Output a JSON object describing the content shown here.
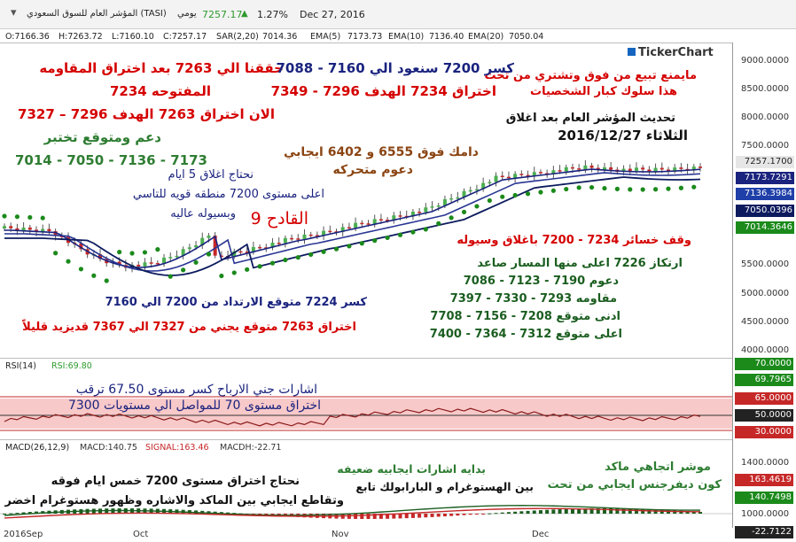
{
  "header": {
    "title": "المؤشر العام للسوق السعودي (TASI)",
    "period": "يومي",
    "last": "7257.17",
    "change_pct": "1.27%",
    "date": "Dec 27, 2016",
    "up_color": "#2e9a2e"
  },
  "ohlc": {
    "o": "O:7166.36",
    "h": "H:7263.72",
    "l": "L:7160.10",
    "c": "C:7257.17",
    "sar": "SAR(2,20)",
    "sar_v": "7014.36",
    "ema5": "EMA(5)",
    "ema5_v": "7173.73",
    "ema10": "EMA(10)",
    "ema10_v": "7136.40",
    "ema20": "EMA(20)",
    "ema20_v": "7050.04"
  },
  "brand": "TickerChart",
  "price_axis": {
    "ticks": [
      "9000.0000",
      "8500.0000",
      "8000.0000",
      "7500.0000",
      "5500.0000",
      "5000.0000",
      "4500.0000",
      "4000.0000"
    ],
    "tags": [
      {
        "v": "7257.1700",
        "bg": "#e6e6e6",
        "fg": "#222"
      },
      {
        "v": "7173.7291",
        "bg": "#1a237e",
        "fg": "#fff"
      },
      {
        "v": "7136.3984",
        "bg": "#1f3fa8",
        "fg": "#fff"
      },
      {
        "v": "7050.0396",
        "bg": "#0d1b5e",
        "fg": "#fff"
      },
      {
        "v": "7014.3646",
        "bg": "#1b8a1b",
        "fg": "#fff"
      }
    ]
  },
  "rsi": {
    "title": "RSI(14)",
    "value_label": "RSI:69.80",
    "ticks": [
      "70.0000",
      "69.7965",
      "65.0000",
      "50.0000",
      "30.0000"
    ]
  },
  "macd": {
    "title": "MACD(26,12,9)",
    "macd": "MACD:140.75",
    "signal": "SIGNAL:163.46",
    "hist": "MACDH:-22.71",
    "ticks": [
      "1400.0000",
      "1000.0000",
      "163.4619",
      "140.7498",
      "-22.7122"
    ]
  },
  "xaxis": [
    "2016Sep",
    "Oct",
    "Nov",
    "Dec"
  ],
  "annotations": {
    "a1": "حققنا الي 7263 بعد اختراق المقاومه",
    "a2": "المفتوحه 7234",
    "a3": "الان اختراق 7263 الهدف 7296 – 7327",
    "a4": "دعم ومتوقع تختبر",
    "a5": "7014 - 7050 - 7136 - 7173",
    "b1": "كسر 7200 سنعود الي 7160 - 7088",
    "b2": "اختراق 7234 الهدف 7296 - 7349",
    "c1": "مايمنع تبيع من فوق وتشتري من تحت",
    "c2": "هذا سلوك كبار الشخصيات",
    "d1": "تحديث المؤشر العام بعد اغلاق",
    "d2": "الثلاثاء 2016/12/27",
    "e1": "دامك فوق 6555 و 6402 ايجابي",
    "e2": "دعوم متحركه",
    "f1": "نحتاج اغلاق 5 ايام",
    "f2": "اعلى مستوى 7200 منطقه قويه للتاسي",
    "f3": "وبسيوله عاليه",
    "g1": "القادح 9",
    "h1": "وقف خسائر 7234 - 7200 باغلاق وسيوله",
    "h2": "ارتكاز 7226 اعلى منها المسار صاعد",
    "h3": "دعوم 7190 - 7123 - 7086",
    "h4": "مقاومه 7293 - 7330 - 7397",
    "h5": "ادنى متوقع 7208 - 7156 - 7708",
    "h6": "اعلى متوقع 7312 - 7364 - 7400",
    "i1": "كسر 7224 متوقع الارتداد من 7200 الي 7160",
    "i2": "اختراق 7263 متوقع يجني من 7327 الي 7367 قديزيد قليلاً",
    "j1": "اشارات جني الارباح كسر مستوى 67.50 ترقب",
    "j2": "اختراق مستوى 70 للمواصل الي مستويات 7300",
    "k1": "نحتاج اختراق مستوى 7200 خمس ايام فوقه",
    "k2": "وتقاطع ايجابي بين الماكد والاشاره وظهور هستوغرام اخضر",
    "l1": "بدايه اشارات ايجابيه ضعيفه",
    "l2": "بين الهستوغرام و البارابولك تابع",
    "m1": "موشر اتجاهي ماكد",
    "m2": "كون ديفرجنس ايجابي من تحت"
  },
  "chart_data": {
    "type": "line",
    "title": "المؤشر العام للسوق السعودي (TASI)",
    "x": [
      "2016Sep",
      "Oct",
      "Nov",
      "Dec",
      "Dec 27, 2016"
    ],
    "series": [
      {
        "name": "EMA(5)",
        "values": [
          null,
          5450,
          6350,
          7000,
          7173.73
        ]
      },
      {
        "name": "EMA(10)",
        "values": [
          null,
          5550,
          6250,
          6950,
          7136.4
        ]
      },
      {
        "name": "EMA(20)",
        "values": [
          null,
          5700,
          6100,
          6850,
          7050.04
        ]
      },
      {
        "name": "SAR(2,20)",
        "values": [
          null,
          5200,
          6000,
          6800,
          7014.36
        ]
      }
    ],
    "last_close": 7257.17,
    "ohlc_last": {
      "open": 7166.36,
      "high": 7263.72,
      "low": 7160.1,
      "close": 7257.17
    },
    "rsi_last": 69.8,
    "macd_last": {
      "macd": 140.75,
      "signal": 163.46,
      "hist": -22.71
    }
  }
}
